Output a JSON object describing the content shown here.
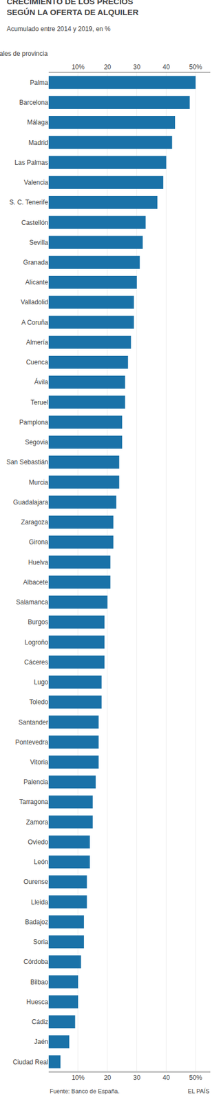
{
  "chart_data": {
    "type": "bar",
    "orientation": "horizontal",
    "title": "CRECIMIENTO DE LOS PRECIOS\nSEGÚN LA OFERTA DE ALQUILER",
    "subtitle": "Acumulado entre 2014 y 2019, en %",
    "annotations": [
      "Capitales de provincia",
      "Fuente: Banco de España.",
      "EL PAÍS"
    ],
    "categories": [
      "Palma",
      "Barcelona",
      "Málaga",
      "Madrid",
      "Las Palmas",
      "Valencia",
      "S. C. Tenerife",
      "Castellón",
      "Sevilla",
      "Granada",
      "Alicante",
      "Valladolid",
      "A Coruña",
      "Almería",
      "Cuenca",
      "Ávila",
      "Teruel",
      "Pamplona",
      "Segovia",
      "San Sebastián",
      "Murcia",
      "Guadalajara",
      "Zaragoza",
      "Girona",
      "Huelva",
      "Albacete",
      "Salamanca",
      "Burgos",
      "Logroño",
      "Cáceres",
      "Lugo",
      "Toledo",
      "Santander",
      "Pontevedra",
      "Vitoria",
      "Palencia",
      "Tarragona",
      "Zamora",
      "Oviedo",
      "León",
      "Ourense",
      "Lleida",
      "Badajoz",
      "Soria",
      "Córdoba",
      "Bilbao",
      "Huesca",
      "Cádiz",
      "Jaén",
      "Ciudad Real"
    ],
    "values": [
      50,
      48,
      43,
      42,
      40,
      39,
      37,
      33,
      32,
      31,
      30,
      29,
      29,
      28,
      27,
      26,
      26,
      25,
      25,
      24,
      24,
      23,
      22,
      22,
      21,
      21,
      20,
      19,
      19,
      19,
      18,
      18,
      17,
      17,
      17,
      16,
      15,
      15,
      14,
      14,
      13,
      13,
      12,
      12,
      11,
      10,
      10,
      9,
      7,
      4
    ],
    "color": "#1a72a8",
    "xlim": [
      0,
      55
    ],
    "xticks": [
      {
        "value": 10,
        "label": "10%"
      },
      20,
      30,
      40,
      {
        "value": 50,
        "label": "50%"
      }
    ],
    "grid": true
  }
}
